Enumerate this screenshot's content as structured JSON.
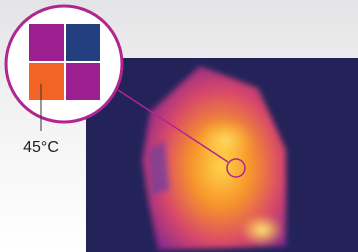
{
  "callout": {
    "label": "45°C"
  }
}
